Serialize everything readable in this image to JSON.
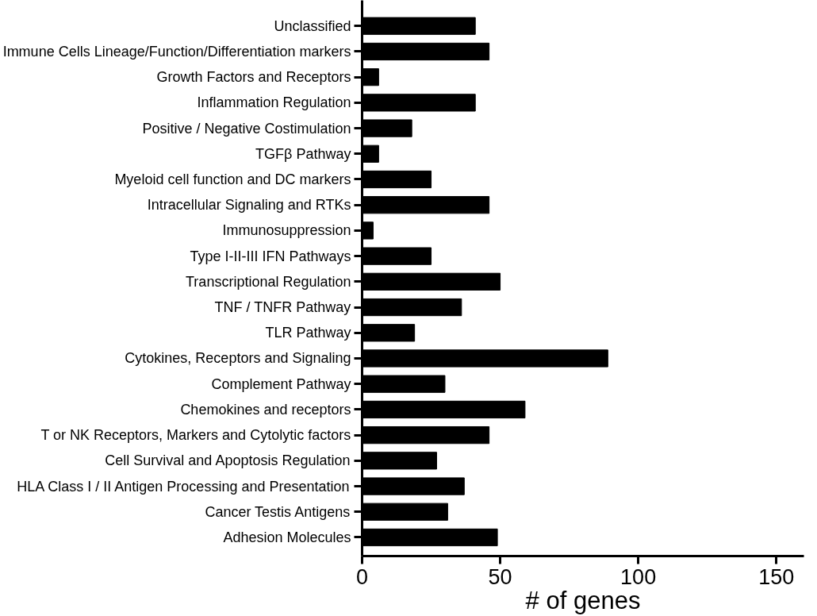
{
  "chart_data": {
    "type": "bar",
    "orientation": "horizontal",
    "xlabel": "# of genes",
    "categories": [
      "Unclassified",
      "Immune Cells Lineage/Function/Differentiation markers",
      "Growth Factors and Receptors",
      "Inflammation Regulation",
      "Positive / Negative Costimulation",
      "TGFβ Pathway",
      "Myeloid cell function and DC markers",
      "Intracellular Signaling and RTKs",
      "Immunosuppression",
      "Type I-II-III IFN Pathways",
      "Transcriptional Regulation",
      "TNF / TNFR Pathway",
      "TLR Pathway",
      "Cytokines, Receptors and Signaling",
      "Complement Pathway",
      "Chemokines and receptors",
      "T or NK Receptors, Markers and Cytolytic factors",
      "Cell Survival and Apoptosis Regulation",
      "HLA Class I / II Antigen Processing and Presentation",
      "Cancer Testis Antigens",
      "Adhesion Molecules"
    ],
    "values": [
      41,
      46,
      6,
      41,
      18,
      6,
      25,
      46,
      4,
      25,
      50,
      36,
      19,
      89,
      30,
      59,
      46,
      27,
      37,
      31,
      49
    ],
    "color": "#000000",
    "xlim": [
      0,
      160
    ],
    "xticks": [
      0,
      50,
      100,
      150
    ]
  }
}
